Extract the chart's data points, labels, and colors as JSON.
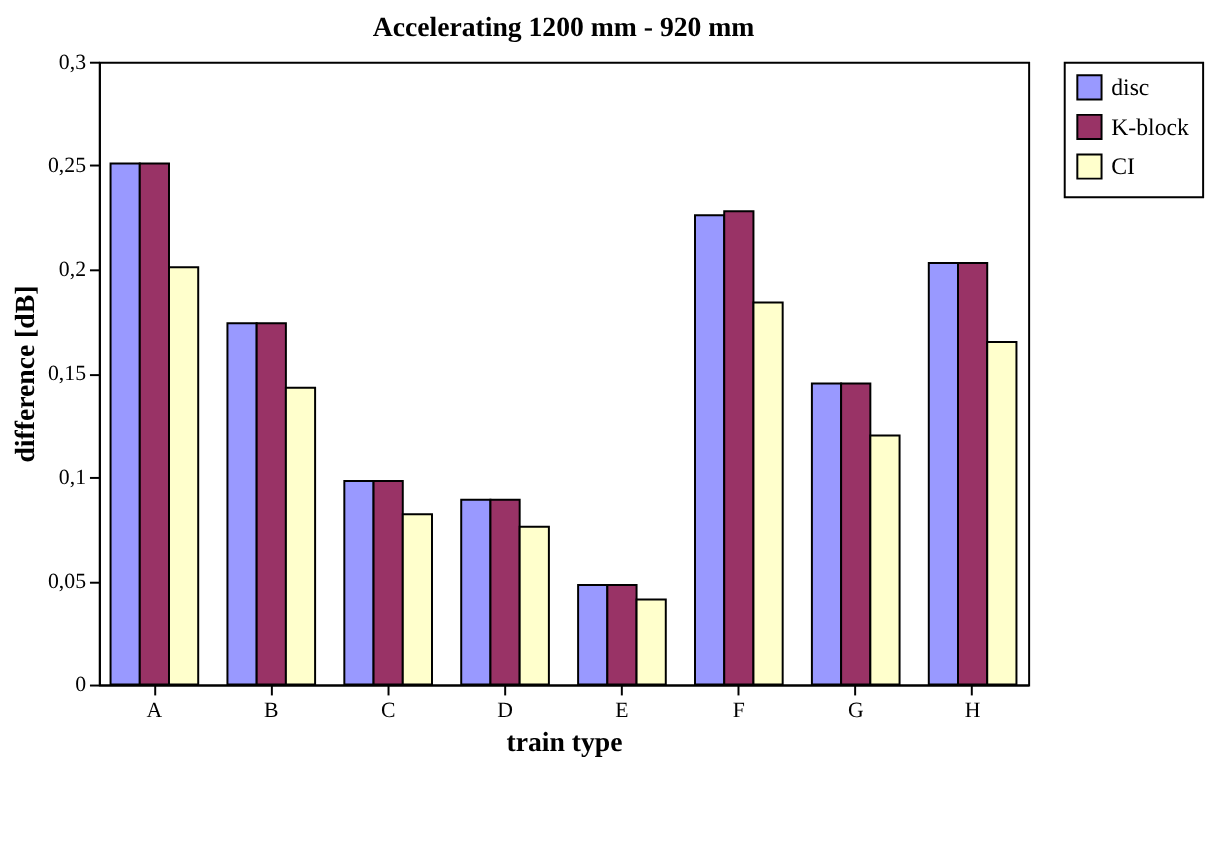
{
  "chart_data": {
    "type": "bar",
    "title": "Accelerating 1200 mm - 920 mm",
    "xlabel": "train type",
    "ylabel": "difference [dB]",
    "categories": [
      "A",
      "B",
      "C",
      "D",
      "E",
      "F",
      "G",
      "H"
    ],
    "series": [
      {
        "name": "disc",
        "color": "#9999ff",
        "values": [
          0.251,
          0.174,
          0.098,
          0.089,
          0.048,
          0.226,
          0.145,
          0.203
        ]
      },
      {
        "name": "K-block",
        "color": "#993366",
        "values": [
          0.251,
          0.174,
          0.098,
          0.089,
          0.048,
          0.228,
          0.145,
          0.203
        ]
      },
      {
        "name": "CI",
        "color": "#ffffcc",
        "values": [
          0.201,
          0.143,
          0.082,
          0.076,
          0.041,
          0.184,
          0.12,
          0.165
        ]
      }
    ],
    "ylim": [
      0,
      0.3
    ],
    "yticks": [
      0,
      {
        "value": 0.05,
        "label": "0,05"
      },
      {
        "value": 0.1,
        "label": "0,1"
      },
      {
        "value": 0.15,
        "label": "0,15"
      },
      {
        "value": 0.2,
        "label": "0,2"
      },
      {
        "value": 0.25,
        "label": "0,25"
      },
      {
        "value": 0.3,
        "label": "0,3"
      }
    ],
    "grid": false,
    "legend": "right"
  }
}
